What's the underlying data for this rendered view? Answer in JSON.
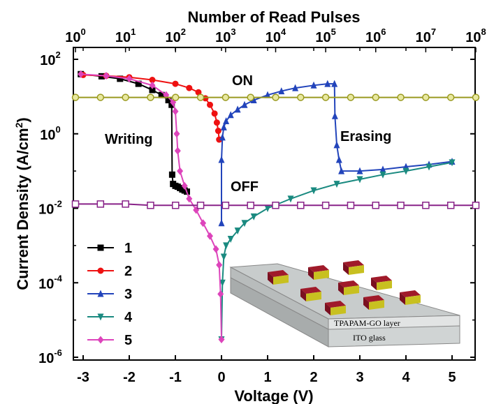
{
  "chart_data": {
    "type": "line",
    "xlabel": "Voltage (V)",
    "ylabel": "Current Density (A/cm",
    "ylabel_sup": "2",
    "ylabel_close": ")",
    "top_xlabel": "Number of Read Pulses",
    "xlim": [
      -3.2,
      5.5
    ],
    "ylim_log10": [
      -5.5,
      2.0
    ],
    "x_scale": "linear",
    "y_scale": "log",
    "x_ticks": [
      -3,
      -2,
      -1,
      0,
      1,
      2,
      3,
      4,
      5
    ],
    "x_tick_labels": [
      "-3",
      "-2",
      "-1",
      "0",
      "1",
      "2",
      "3",
      "4",
      "5"
    ],
    "y_tick_base": "10",
    "y_ticks_log10": [
      2,
      0,
      -2,
      -4,
      -6
    ],
    "y_tick_exponents": [
      "2",
      "0",
      "-2",
      "-4",
      "-6"
    ],
    "top_tick_base": "10",
    "top_ticks_log10": [
      0,
      1,
      2,
      3,
      4,
      5,
      6,
      7,
      8
    ],
    "top_tick_exponents": [
      "0",
      "1",
      "2",
      "3",
      "4",
      "5",
      "6",
      "7",
      "8"
    ],
    "top_xlim_log10": [
      0.0,
      8.0
    ],
    "legend": [
      "1",
      "2",
      "3",
      "4",
      "5"
    ],
    "legend_position": "bottom-left",
    "annotations": {
      "on": "ON",
      "off": "OFF",
      "writing": "Writing",
      "erasing": "Erasing"
    },
    "inset": {
      "top_layer": "TPAPAM-GO layer",
      "bottom_layer": "ITO glass"
    },
    "series": [
      {
        "name": "1",
        "color": "#000000",
        "marker": "square",
        "x": [
          -3.05,
          -2.6,
          -2.2,
          -1.8,
          -1.5,
          -1.3,
          -1.15,
          -1.08,
          -1.07,
          -1.05,
          -1.0,
          -0.95,
          -0.9,
          -0.85,
          -0.8,
          -0.75
        ],
        "y": [
          40,
          35,
          30,
          22,
          15,
          11,
          8,
          6,
          0.08,
          0.045,
          0.04,
          0.038,
          0.035,
          0.032,
          0.03,
          0.028
        ]
      },
      {
        "name": "2",
        "color": "#ee1111",
        "marker": "circle",
        "x": [
          -3.0,
          -2.5,
          -2.0,
          -1.5,
          -1.0,
          -0.7,
          -0.5,
          -0.35,
          -0.25,
          -0.15,
          -0.1,
          -0.07,
          -0.05
        ],
        "y": [
          38,
          36,
          33,
          28,
          22,
          17,
          13,
          9,
          6,
          3.5,
          2.0,
          1.2,
          0.7
        ]
      },
      {
        "name": "3",
        "color": "#2244bb",
        "marker": "triangle-up",
        "x": [
          0.0,
          0.0,
          0.02,
          0.05,
          0.1,
          0.2,
          0.35,
          0.5,
          0.7,
          1.0,
          1.3,
          1.6,
          2.0,
          2.3,
          2.45,
          2.46,
          2.5,
          2.55,
          2.6,
          3.0,
          3.5,
          4.0,
          4.5,
          5.0
        ],
        "y": [
          0.004,
          0.2,
          0.8,
          1.5,
          2.2,
          3.2,
          4.5,
          6,
          8,
          11,
          14,
          17,
          20,
          22,
          22,
          3,
          0.5,
          0.2,
          0.1,
          0.1,
          0.11,
          0.13,
          0.15,
          0.18
        ]
      },
      {
        "name": "4",
        "color": "#1a8a80",
        "marker": "triangle-down",
        "x": [
          0.0,
          0.02,
          0.05,
          0.1,
          0.2,
          0.35,
          0.5,
          0.7,
          1.0,
          1.5,
          2.0,
          2.5,
          3.0,
          3.5,
          4.0,
          4.5,
          5.0
        ],
        "y": [
          3e-06,
          0.0001,
          0.0005,
          0.001,
          0.0015,
          0.0025,
          0.004,
          0.006,
          0.01,
          0.018,
          0.03,
          0.045,
          0.06,
          0.08,
          0.1,
          0.13,
          0.17
        ]
      },
      {
        "name": "5",
        "color": "#dd44bb",
        "marker": "diamond",
        "x": [
          -3.05,
          -2.5,
          -2.0,
          -1.5,
          -1.2,
          -1.05,
          -1.0,
          -0.97,
          -0.95,
          -0.9,
          -0.8,
          -0.7,
          -0.55,
          -0.4,
          -0.25,
          -0.12,
          -0.05,
          -0.02,
          0.0
        ],
        "y": [
          40,
          36,
          30,
          20,
          11,
          7,
          4,
          1.0,
          0.35,
          0.1,
          0.04,
          0.018,
          0.009,
          0.004,
          0.0018,
          0.0008,
          0.0003,
          5e-05,
          3e-06
        ]
      },
      {
        "name": "",
        "color": "#9a9a20",
        "marker": "half-circle",
        "axis": "top",
        "x_log10": [
          0.0,
          0.5,
          1.0,
          1.5,
          2.0,
          2.5,
          3.0,
          3.5,
          4.0,
          4.5,
          5.0,
          5.5,
          6.0,
          6.5,
          7.0,
          7.5,
          8.0
        ],
        "y": [
          9.5,
          9.5,
          9.5,
          9.5,
          9.5,
          9.5,
          9.5,
          9.5,
          9.5,
          9.5,
          9.5,
          9.5,
          9.5,
          9.5,
          9.5,
          9.5,
          9.5
        ]
      },
      {
        "name": "",
        "color": "#882288",
        "marker": "open-square",
        "axis": "top",
        "x_log10": [
          0.0,
          0.5,
          1.0,
          1.5,
          2.0,
          2.5,
          3.0,
          3.5,
          4.0,
          4.5,
          5.0,
          5.5,
          6.0,
          6.5,
          7.0,
          7.5,
          8.0
        ],
        "y": [
          0.013,
          0.013,
          0.013,
          0.012,
          0.012,
          0.012,
          0.012,
          0.012,
          0.012,
          0.012,
          0.012,
          0.012,
          0.012,
          0.012,
          0.012,
          0.012,
          0.012
        ]
      }
    ]
  }
}
